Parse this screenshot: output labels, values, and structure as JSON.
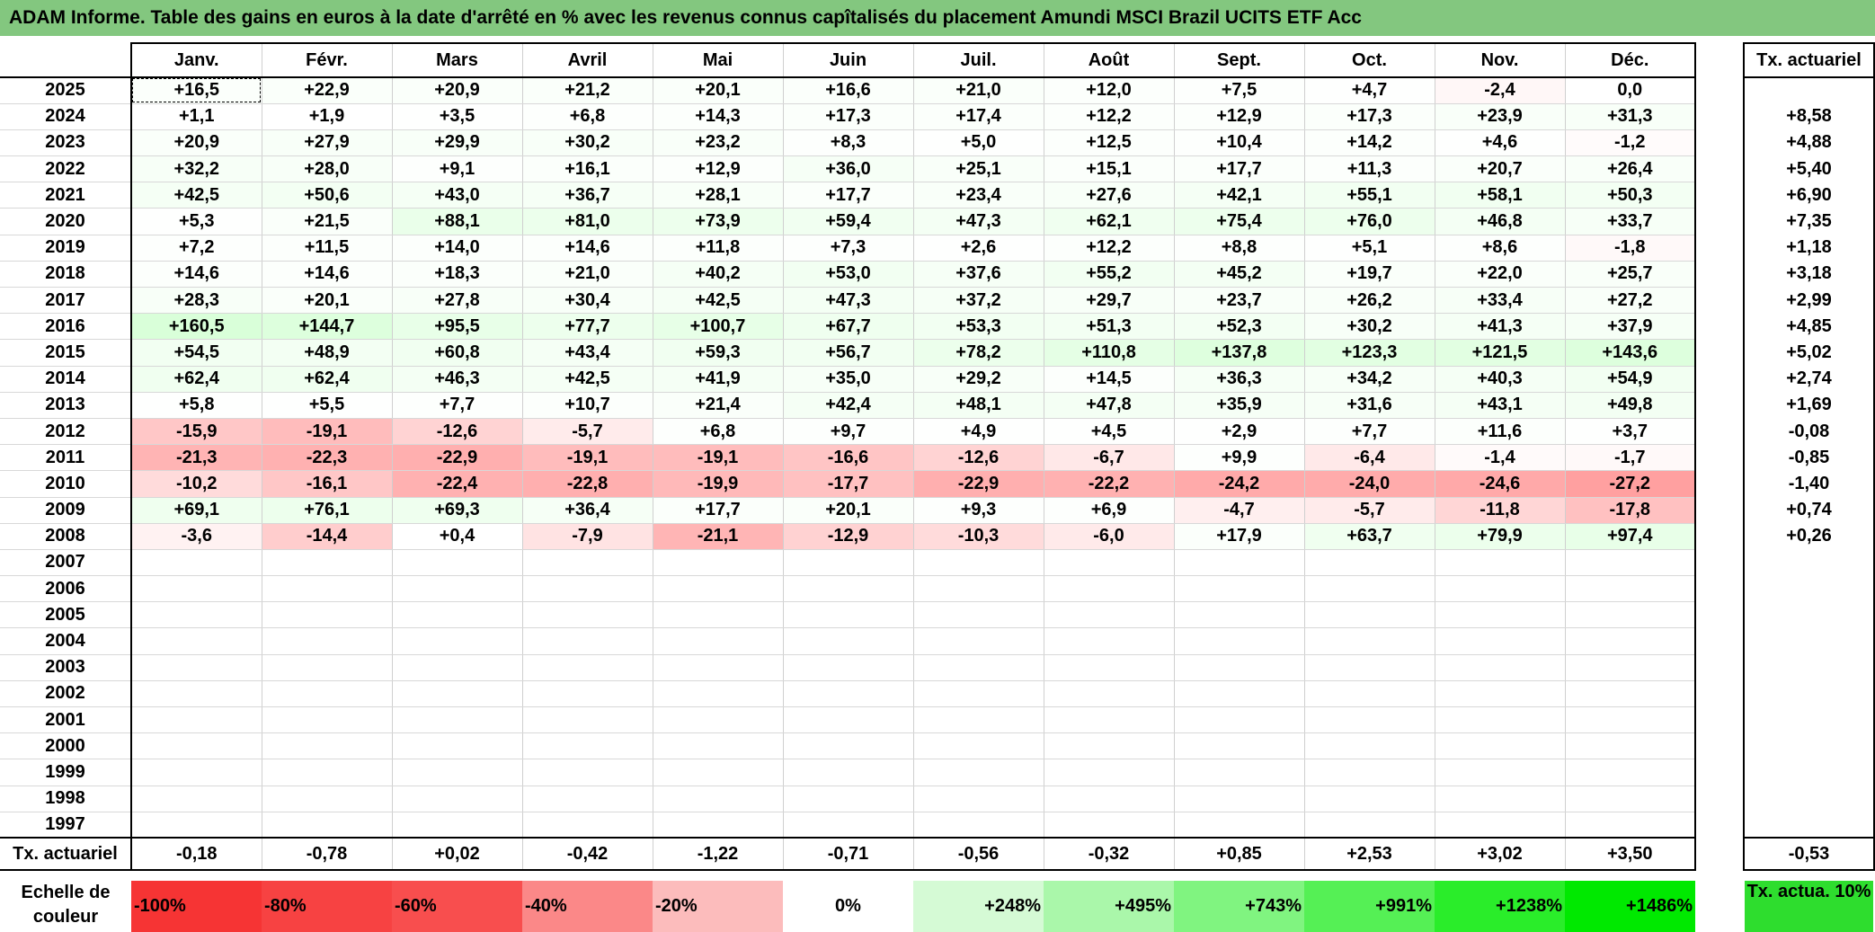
{
  "title": "ADAM Informe. Table des gains en euros à la date d'arrêté en % avec les revenus connus capîtalisés du placement Amundi MSCI Brazil UCITS ETF Acc",
  "months": [
    "Janv.",
    "Févr.",
    "Mars",
    "Avril",
    "Mai",
    "Juin",
    "Juil.",
    "Août",
    "Sept.",
    "Oct.",
    "Nov.",
    "Déc."
  ],
  "side_header": "Tx. actuariel",
  "rows": [
    {
      "year": "2025",
      "cells": [
        "+16,5",
        "+22,9",
        "+20,9",
        "+21,2",
        "+20,1",
        "+16,6",
        "+21,0",
        "+12,0",
        "+7,5",
        "+4,7",
        "-2,4",
        "0,0"
      ],
      "tx": ""
    },
    {
      "year": "2024",
      "cells": [
        "+1,1",
        "+1,9",
        "+3,5",
        "+6,8",
        "+14,3",
        "+17,3",
        "+17,4",
        "+12,2",
        "+12,9",
        "+17,3",
        "+23,9",
        "+31,3"
      ],
      "tx": "+8,58"
    },
    {
      "year": "2023",
      "cells": [
        "+20,9",
        "+27,9",
        "+29,9",
        "+30,2",
        "+23,2",
        "+8,3",
        "+5,0",
        "+12,5",
        "+10,4",
        "+14,2",
        "+4,6",
        "-1,2"
      ],
      "tx": "+4,88"
    },
    {
      "year": "2022",
      "cells": [
        "+32,2",
        "+28,0",
        "+9,1",
        "+16,1",
        "+12,9",
        "+36,0",
        "+25,1",
        "+15,1",
        "+17,7",
        "+11,3",
        "+20,7",
        "+26,4"
      ],
      "tx": "+5,40"
    },
    {
      "year": "2021",
      "cells": [
        "+42,5",
        "+50,6",
        "+43,0",
        "+36,7",
        "+28,1",
        "+17,7",
        "+23,4",
        "+27,6",
        "+42,1",
        "+55,1",
        "+58,1",
        "+50,3"
      ],
      "tx": "+6,90"
    },
    {
      "year": "2020",
      "cells": [
        "+5,3",
        "+21,5",
        "+88,1",
        "+81,0",
        "+73,9",
        "+59,4",
        "+47,3",
        "+62,1",
        "+75,4",
        "+76,0",
        "+46,8",
        "+33,7"
      ],
      "tx": "+7,35"
    },
    {
      "year": "2019",
      "cells": [
        "+7,2",
        "+11,5",
        "+14,0",
        "+14,6",
        "+11,8",
        "+7,3",
        "+2,6",
        "+12,2",
        "+8,8",
        "+5,1",
        "+8,6",
        "-1,8"
      ],
      "tx": "+1,18"
    },
    {
      "year": "2018",
      "cells": [
        "+14,6",
        "+14,6",
        "+18,3",
        "+21,0",
        "+40,2",
        "+53,0",
        "+37,6",
        "+55,2",
        "+45,2",
        "+19,7",
        "+22,0",
        "+25,7"
      ],
      "tx": "+3,18"
    },
    {
      "year": "2017",
      "cells": [
        "+28,3",
        "+20,1",
        "+27,8",
        "+30,4",
        "+42,5",
        "+47,3",
        "+37,2",
        "+29,7",
        "+23,7",
        "+26,2",
        "+33,4",
        "+27,2"
      ],
      "tx": "+2,99"
    },
    {
      "year": "2016",
      "cells": [
        "+160,5",
        "+144,7",
        "+95,5",
        "+77,7",
        "+100,7",
        "+67,7",
        "+53,3",
        "+51,3",
        "+52,3",
        "+30,2",
        "+41,3",
        "+37,9"
      ],
      "tx": "+4,85"
    },
    {
      "year": "2015",
      "cells": [
        "+54,5",
        "+48,9",
        "+60,8",
        "+43,4",
        "+59,3",
        "+56,7",
        "+78,2",
        "+110,8",
        "+137,8",
        "+123,3",
        "+121,5",
        "+143,6"
      ],
      "tx": "+5,02"
    },
    {
      "year": "2014",
      "cells": [
        "+62,4",
        "+62,4",
        "+46,3",
        "+42,5",
        "+41,9",
        "+35,0",
        "+29,2",
        "+14,5",
        "+36,3",
        "+34,2",
        "+40,3",
        "+54,9"
      ],
      "tx": "+2,74"
    },
    {
      "year": "2013",
      "cells": [
        "+5,8",
        "+5,5",
        "+7,7",
        "+10,7",
        "+21,4",
        "+42,4",
        "+48,1",
        "+47,8",
        "+35,9",
        "+31,6",
        "+43,1",
        "+49,8"
      ],
      "tx": "+1,69"
    },
    {
      "year": "2012",
      "cells": [
        "-15,9",
        "-19,1",
        "-12,6",
        "-5,7",
        "+6,8",
        "+9,7",
        "+4,9",
        "+4,5",
        "+2,9",
        "+7,7",
        "+11,6",
        "+3,7"
      ],
      "tx": "-0,08"
    },
    {
      "year": "2011",
      "cells": [
        "-21,3",
        "-22,3",
        "-22,9",
        "-19,1",
        "-19,1",
        "-16,6",
        "-12,6",
        "-6,7",
        "+9,9",
        "-6,4",
        "-1,4",
        "-1,7"
      ],
      "tx": "-0,85"
    },
    {
      "year": "2010",
      "cells": [
        "-10,2",
        "-16,1",
        "-22,4",
        "-22,8",
        "-19,9",
        "-17,7",
        "-22,9",
        "-22,2",
        "-24,2",
        "-24,0",
        "-24,6",
        "-27,2"
      ],
      "tx": "-1,40"
    },
    {
      "year": "2009",
      "cells": [
        "+69,1",
        "+76,1",
        "+69,3",
        "+36,4",
        "+17,7",
        "+20,1",
        "+9,3",
        "+6,9",
        "-4,7",
        "-5,7",
        "-11,8",
        "-17,8"
      ],
      "tx": "+0,74"
    },
    {
      "year": "2008",
      "cells": [
        "-3,6",
        "-14,4",
        "+0,4",
        "-7,9",
        "-21,1",
        "-12,9",
        "-10,3",
        "-6,0",
        "+17,9",
        "+63,7",
        "+79,9",
        "+97,4"
      ],
      "tx": "+0,26"
    },
    {
      "year": "2007",
      "cells": [
        "",
        "",
        "",
        "",
        "",
        "",
        "",
        "",
        "",
        "",
        "",
        ""
      ],
      "tx": ""
    },
    {
      "year": "2006",
      "cells": [
        "",
        "",
        "",
        "",
        "",
        "",
        "",
        "",
        "",
        "",
        "",
        ""
      ],
      "tx": ""
    },
    {
      "year": "2005",
      "cells": [
        "",
        "",
        "",
        "",
        "",
        "",
        "",
        "",
        "",
        "",
        "",
        ""
      ],
      "tx": ""
    },
    {
      "year": "2004",
      "cells": [
        "",
        "",
        "",
        "",
        "",
        "",
        "",
        "",
        "",
        "",
        "",
        ""
      ],
      "tx": ""
    },
    {
      "year": "2003",
      "cells": [
        "",
        "",
        "",
        "",
        "",
        "",
        "",
        "",
        "",
        "",
        "",
        ""
      ],
      "tx": ""
    },
    {
      "year": "2002",
      "cells": [
        "",
        "",
        "",
        "",
        "",
        "",
        "",
        "",
        "",
        "",
        "",
        ""
      ],
      "tx": ""
    },
    {
      "year": "2001",
      "cells": [
        "",
        "",
        "",
        "",
        "",
        "",
        "",
        "",
        "",
        "",
        "",
        ""
      ],
      "tx": ""
    },
    {
      "year": "2000",
      "cells": [
        "",
        "",
        "",
        "",
        "",
        "",
        "",
        "",
        "",
        "",
        "",
        ""
      ],
      "tx": ""
    },
    {
      "year": "1999",
      "cells": [
        "",
        "",
        "",
        "",
        "",
        "",
        "",
        "",
        "",
        "",
        "",
        ""
      ],
      "tx": ""
    },
    {
      "year": "1998",
      "cells": [
        "",
        "",
        "",
        "",
        "",
        "",
        "",
        "",
        "",
        "",
        "",
        ""
      ],
      "tx": ""
    },
    {
      "year": "1997",
      "cells": [
        "",
        "",
        "",
        "",
        "",
        "",
        "",
        "",
        "",
        "",
        "",
        ""
      ],
      "tx": ""
    }
  ],
  "footer": {
    "label": "Tx. actuariel",
    "cells": [
      "-0,18",
      "-0,78",
      "+0,02",
      "-0,42",
      "-1,22",
      "-0,71",
      "-0,56",
      "-0,32",
      "+0,85",
      "+2,53",
      "+3,02",
      "+3,50"
    ],
    "tx": "-0,53"
  },
  "scale": {
    "label": "Echelle de couleur",
    "swatches": [
      {
        "text": "-100%",
        "color": "#f63434"
      },
      {
        "text": "-80%",
        "color": "#f74242"
      },
      {
        "text": "-60%",
        "color": "#f84e4e"
      },
      {
        "text": "-40%",
        "color": "#fb8888"
      },
      {
        "text": "-20%",
        "color": "#fcbcbc"
      },
      {
        "text": "0%",
        "color": "#ffffff"
      },
      {
        "text": "+248%",
        "color": "#d5fad5"
      },
      {
        "text": "+495%",
        "color": "#aaf7aa"
      },
      {
        "text": "+743%",
        "color": "#80f480"
      },
      {
        "text": "+991%",
        "color": "#55f055"
      },
      {
        "text": "+1238%",
        "color": "#2aed2a"
      },
      {
        "text": "+1486%",
        "color": "#00e900"
      }
    ],
    "tx_label": "Tx. actua. 10%",
    "tx_color": "#2edd2e"
  }
}
